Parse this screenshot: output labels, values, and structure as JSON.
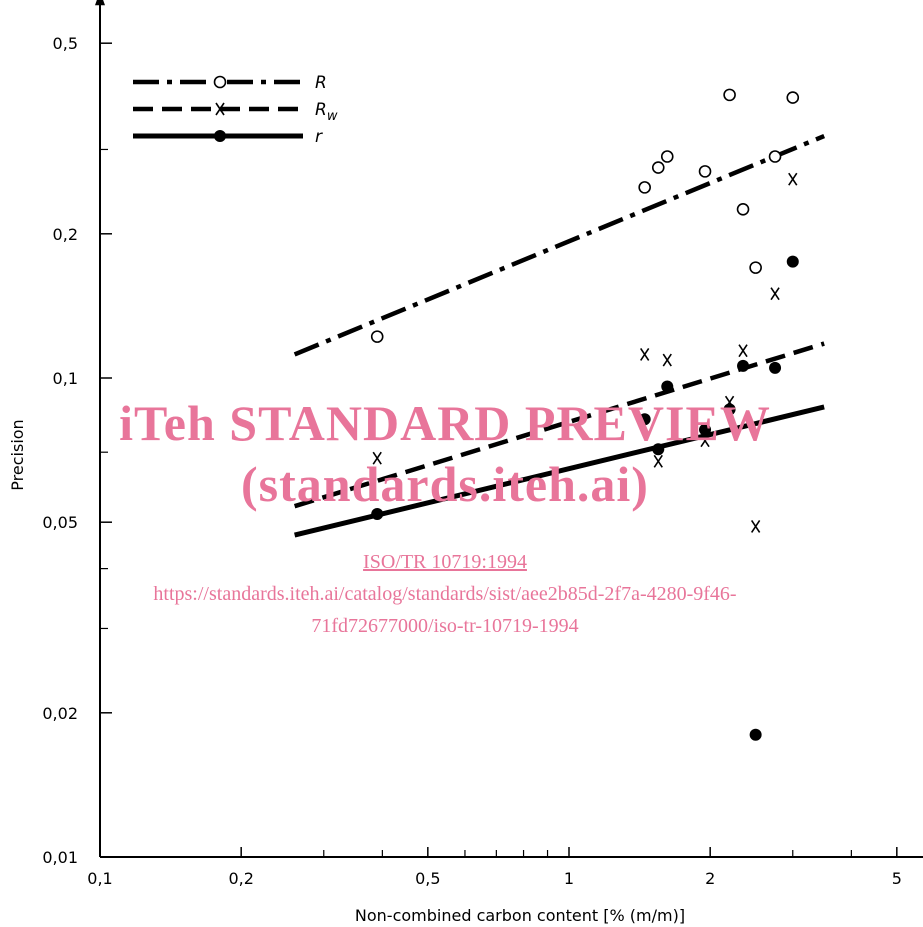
{
  "chart_data": {
    "type": "scatter",
    "xlabel": "Non-combined carbon content [% (m/m)]",
    "ylabel": "Precision",
    "x_scale": "log",
    "y_scale": "log",
    "xlim": [
      0.1,
      6
    ],
    "ylim": [
      0.01,
      0.6
    ],
    "x_tick_labels": [
      {
        "value": 0.1,
        "label": "0,1"
      },
      {
        "value": 0.2,
        "label": "0,2"
      },
      {
        "value": 0.5,
        "label": "0,5"
      },
      {
        "value": 1,
        "label": "1"
      },
      {
        "value": 2,
        "label": "2"
      },
      {
        "value": 5,
        "label": "5"
      }
    ],
    "x_minor_ticks": [
      0.3,
      0.4,
      0.6,
      0.7,
      0.8,
      0.9,
      3,
      4
    ],
    "y_tick_labels": [
      {
        "value": 0.01,
        "label": "0,01"
      },
      {
        "value": 0.02,
        "label": "0,02"
      },
      {
        "value": 0.05,
        "label": "0,05"
      },
      {
        "value": 0.1,
        "label": "0,1"
      },
      {
        "value": 0.2,
        "label": "0,2"
      },
      {
        "value": 0.5,
        "label": "0,5"
      }
    ],
    "y_minor_ticks": [
      0.03,
      0.04,
      0.07,
      0.3
    ],
    "series": [
      {
        "name": "R",
        "marker": "open-circle",
        "line_style": "dash-dot",
        "points": [
          [
            0.39,
            0.122
          ],
          [
            1.45,
            0.25
          ],
          [
            1.55,
            0.275
          ],
          [
            1.62,
            0.29
          ],
          [
            1.95,
            0.27
          ],
          [
            2.2,
            0.39
          ],
          [
            2.35,
            0.225
          ],
          [
            2.5,
            0.17
          ],
          [
            2.75,
            0.29
          ],
          [
            3.0,
            0.385
          ]
        ],
        "fit": [
          [
            0.26,
            0.112
          ],
          [
            3.5,
            0.32
          ]
        ]
      },
      {
        "name": "Rw",
        "marker": "x",
        "line_style": "dashed",
        "points": [
          [
            0.39,
            0.068
          ],
          [
            1.45,
            0.112
          ],
          [
            1.62,
            0.109
          ],
          [
            1.55,
            0.067
          ],
          [
            1.95,
            0.074
          ],
          [
            2.2,
            0.089
          ],
          [
            2.35,
            0.114
          ],
          [
            2.5,
            0.049
          ],
          [
            2.75,
            0.15
          ],
          [
            3.0,
            0.26
          ]
        ],
        "fit": [
          [
            0.26,
            0.054
          ],
          [
            3.5,
            0.118
          ]
        ]
      },
      {
        "name": "r",
        "marker": "filled-circle",
        "line_style": "solid",
        "points": [
          [
            0.39,
            0.052
          ],
          [
            1.45,
            0.082
          ],
          [
            1.62,
            0.096
          ],
          [
            1.55,
            0.071
          ],
          [
            1.95,
            0.078
          ],
          [
            2.2,
            0.086
          ],
          [
            2.35,
            0.106
          ],
          [
            2.5,
            0.018
          ],
          [
            2.75,
            0.105
          ],
          [
            3.0,
            0.175
          ]
        ],
        "fit": [
          [
            0.26,
            0.047
          ],
          [
            3.5,
            0.087
          ]
        ]
      }
    ],
    "legend": {
      "placement": "top-left",
      "entries": [
        {
          "label": "R",
          "marker": "open-circle",
          "line_style": "dash-dot"
        },
        {
          "label": "Rw",
          "marker": "x",
          "line_style": "dashed"
        },
        {
          "label": "r",
          "marker": "filled-circle",
          "line_style": "solid"
        }
      ]
    },
    "grid": false
  },
  "watermark": {
    "line1": "iTeh STANDARD PREVIEW",
    "line2": "(standards.iteh.ai)",
    "line3": "ISO/TR 10719:1994",
    "line4": "https://standards.iteh.ai/catalog/standards/sist/aee2b85d-2f7a-4280-9f46-",
    "line5": "71fd72677000/iso-tr-10719-1994"
  }
}
